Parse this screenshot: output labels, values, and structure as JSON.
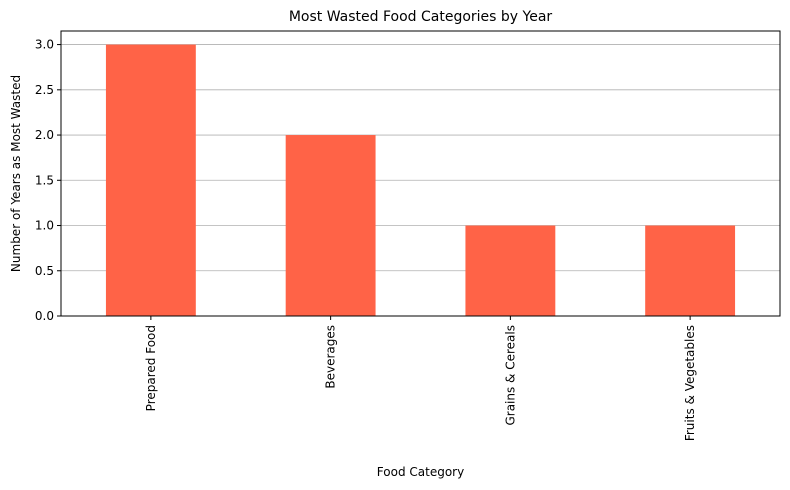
{
  "chart_data": {
    "type": "bar",
    "title": "Most Wasted Food Categories by Year",
    "xlabel": "Food Category",
    "ylabel": "Number of Years as Most Wasted",
    "categories": [
      "Prepared Food",
      "Beverages",
      "Grains & Cereals",
      "Fruits & Vegetables"
    ],
    "values": [
      3,
      2,
      1,
      1
    ],
    "ylim": [
      0,
      3.15
    ],
    "yticks": [
      0.0,
      0.5,
      1.0,
      1.5,
      2.0,
      2.5,
      3.0
    ],
    "ytick_labels": [
      "0.0",
      "0.5",
      "1.0",
      "1.5",
      "2.0",
      "2.5",
      "3.0"
    ],
    "grid": "y-major",
    "bar_color": "#ff6347",
    "grid_color": "#b0b0b0",
    "x_tick_rotation": "vertical"
  }
}
